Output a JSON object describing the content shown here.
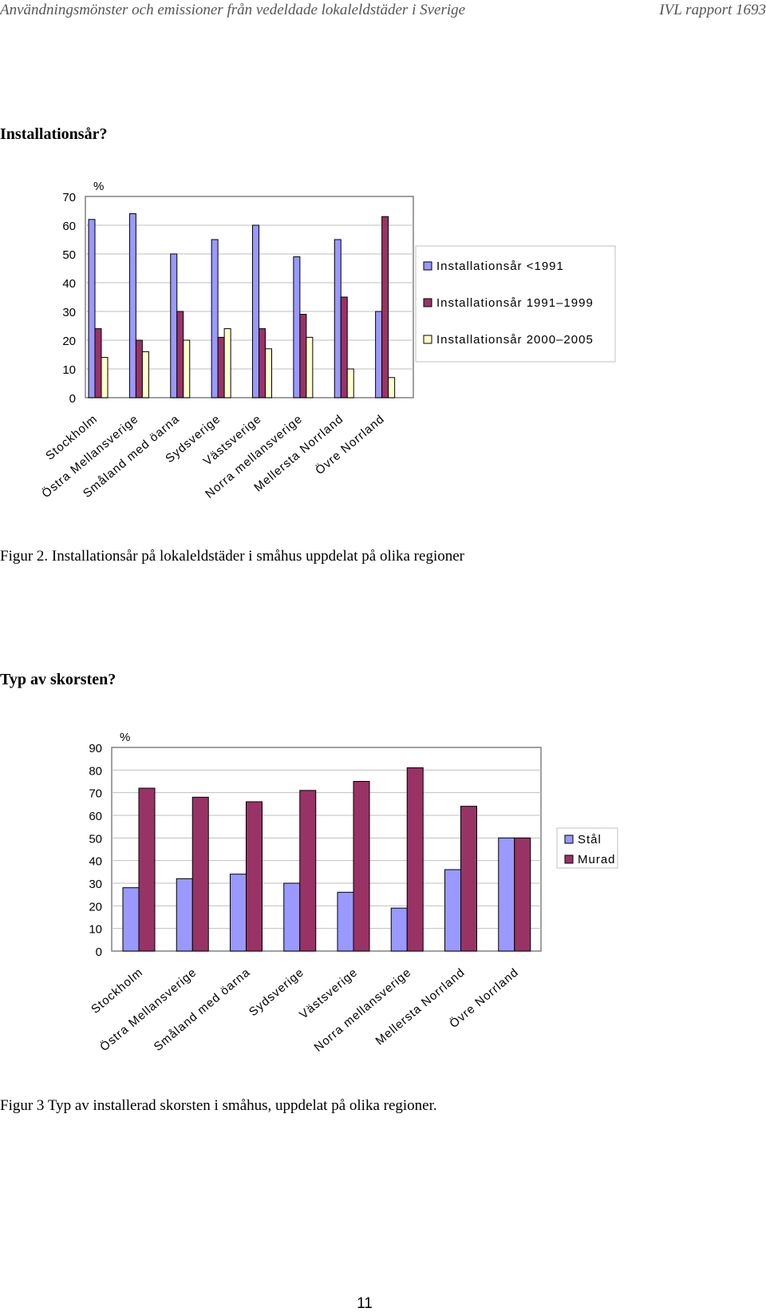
{
  "header": {
    "left": "Användningsmönster och emissioner från vedeldade lokaleldstäder i Sverige",
    "right": "IVL rapport 1693"
  },
  "section1": {
    "heading": "Installationsår?",
    "caption": "Figur 2. Installationsår på lokaleldstäder i småhus uppdelat på olika regioner"
  },
  "section2": {
    "heading": "Typ av skorsten?",
    "caption": "Figur 3 Typ av installerad skorsten i småhus, uppdelat på olika regioner."
  },
  "page_number": "11",
  "chart_data": [
    {
      "type": "bar",
      "title": "",
      "ylabel": "%",
      "ylim": [
        0,
        70
      ],
      "yticks": [
        0,
        10,
        20,
        30,
        40,
        50,
        60,
        70
      ],
      "grid": true,
      "legend_position": "right",
      "categories": [
        "Stockholm",
        "Östra Mellansverige",
        "Småland med öarna",
        "Sydsverige",
        "Västsverige",
        "Norra mellansverige",
        "Mellersta Norrland",
        "Övre Norrland"
      ],
      "series": [
        {
          "name": "Installationsår <1991",
          "color": "#9999ff",
          "values": [
            62,
            64,
            50,
            55,
            60,
            49,
            55,
            30
          ]
        },
        {
          "name": "Installationsår 1991–1999",
          "color": "#993366",
          "values": [
            24,
            20,
            30,
            21,
            24,
            29,
            35,
            63
          ]
        },
        {
          "name": "Installationsår 2000–2005",
          "color": "#ffffcc",
          "values": [
            14,
            16,
            20,
            24,
            17,
            21,
            10,
            7
          ]
        }
      ]
    },
    {
      "type": "bar",
      "title": "",
      "ylabel": "%",
      "ylim": [
        0,
        90
      ],
      "yticks": [
        0,
        10,
        20,
        30,
        40,
        50,
        60,
        70,
        80,
        90
      ],
      "grid": true,
      "legend_position": "right",
      "categories": [
        "Stockholm",
        "Östra Mellansverige",
        "Småland med öarna",
        "Sydsverige",
        "Västsverige",
        "Norra mellansverige",
        "Mellersta Norrland",
        "Övre Norrland"
      ],
      "series": [
        {
          "name": "Stål",
          "color": "#9999ff",
          "values": [
            28,
            32,
            34,
            30,
            26,
            19,
            36,
            50
          ]
        },
        {
          "name": "Murad",
          "color": "#993366",
          "values": [
            72,
            68,
            66,
            71,
            75,
            81,
            64,
            50
          ]
        }
      ]
    }
  ]
}
